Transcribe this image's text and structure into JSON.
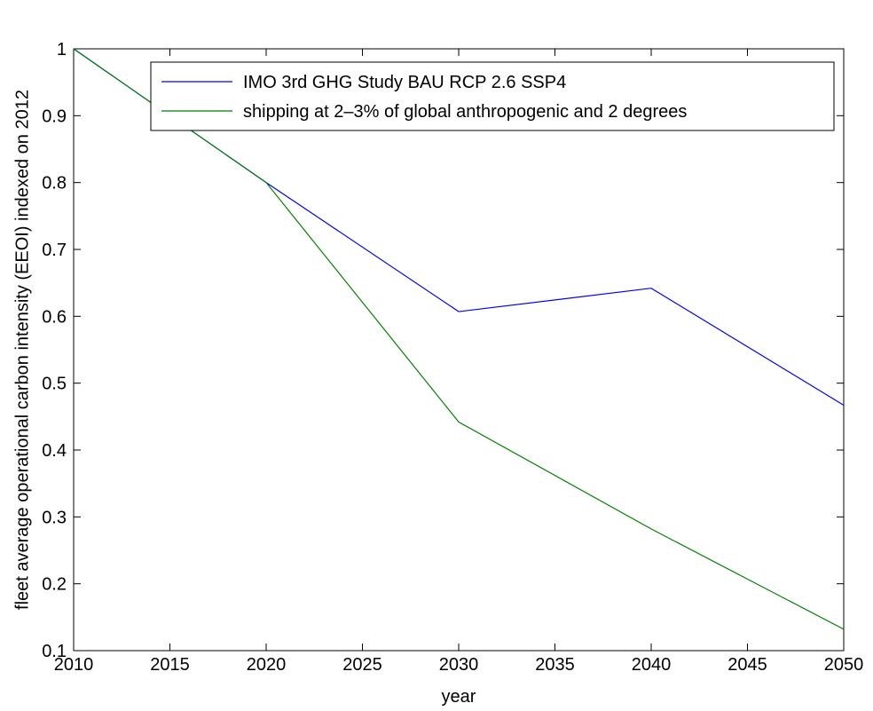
{
  "chart_data": {
    "type": "line",
    "x_label": "year",
    "y_label": "fleet average operational carbon intensity (EEOI) indexed on 2012",
    "x": [
      2010,
      2020,
      2030,
      2040,
      2050
    ],
    "series": [
      {
        "name": "IMO 3rd GHG Study BAU RCP 2.6 SSP4",
        "color": "#0000ff",
        "values": [
          1,
          0.8,
          0.607,
          0.642,
          0.467
        ]
      },
      {
        "name": "shipping at 2–3% of global anthropogenic and 2 degrees",
        "color": "#008000",
        "values": [
          1,
          0.8,
          0.442,
          0.282,
          0.132
        ]
      }
    ],
    "xlim": [
      2010,
      2050
    ],
    "xticks": [
      2010,
      2015,
      2020,
      2025,
      2030,
      2035,
      2040,
      2045,
      2050
    ],
    "ylim": [
      0.1,
      1
    ],
    "yticks": [
      0.1,
      0.2,
      0.3,
      0.4,
      0.5,
      0.6,
      0.7,
      0.8,
      0.9,
      1
    ],
    "legend": "top-right"
  }
}
